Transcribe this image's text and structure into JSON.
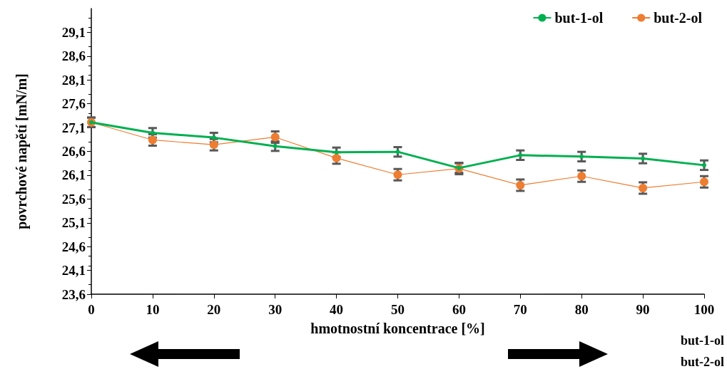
{
  "chart_data": {
    "type": "line",
    "xlabel": "hmotnostní koncentrace [%]",
    "ylabel": "povrchové napětí [mN/m]",
    "x": [
      0,
      10,
      20,
      30,
      40,
      50,
      60,
      70,
      80,
      90,
      100
    ],
    "series": [
      {
        "name": "but-1-ol",
        "color": "#00b050",
        "marker": "circle",
        "values": [
          27.21,
          26.99,
          26.89,
          26.71,
          26.58,
          26.59,
          26.25,
          26.52,
          26.49,
          26.45,
          26.31
        ],
        "errors": [
          0.1,
          0.1,
          0.1,
          0.1,
          0.1,
          0.1,
          0.1,
          0.1,
          0.1,
          0.1,
          0.1
        ]
      },
      {
        "name": "but-2-ol",
        "color": "#ed7d31",
        "marker": "circle",
        "values": [
          27.21,
          26.84,
          26.74,
          26.9,
          26.46,
          26.11,
          26.24,
          25.89,
          26.08,
          25.83,
          25.96
        ],
        "errors": [
          0.1,
          0.12,
          0.12,
          0.12,
          0.12,
          0.12,
          0.12,
          0.12,
          0.12,
          0.12,
          0.12
        ]
      }
    ],
    "xlim": [
      0,
      100
    ],
    "xticks": [
      0,
      10,
      20,
      30,
      40,
      50,
      60,
      70,
      80,
      90,
      100
    ],
    "ylim": [
      23.6,
      29.6
    ],
    "yticks": [
      {
        "value": 23.6,
        "label": "23,6"
      },
      {
        "value": 24.1,
        "label": "24,1"
      },
      {
        "value": 24.6,
        "label": "24,6"
      },
      {
        "value": 25.1,
        "label": "25,1"
      },
      {
        "value": 25.6,
        "label": "25,6"
      },
      {
        "value": 26.1,
        "label": "26,1"
      },
      {
        "value": 26.6,
        "label": "26,6"
      },
      {
        "value": 27.1,
        "label": "27,1"
      },
      {
        "value": 27.6,
        "label": "27,6"
      },
      {
        "value": 28.1,
        "label": "28,1"
      },
      {
        "value": 28.6,
        "label": "28,6"
      },
      {
        "value": 29.1,
        "label": "29,1"
      }
    ],
    "grid": false,
    "legend": "top right",
    "annotations": [
      "but-1-ol\nbut-2-ol"
    ]
  }
}
